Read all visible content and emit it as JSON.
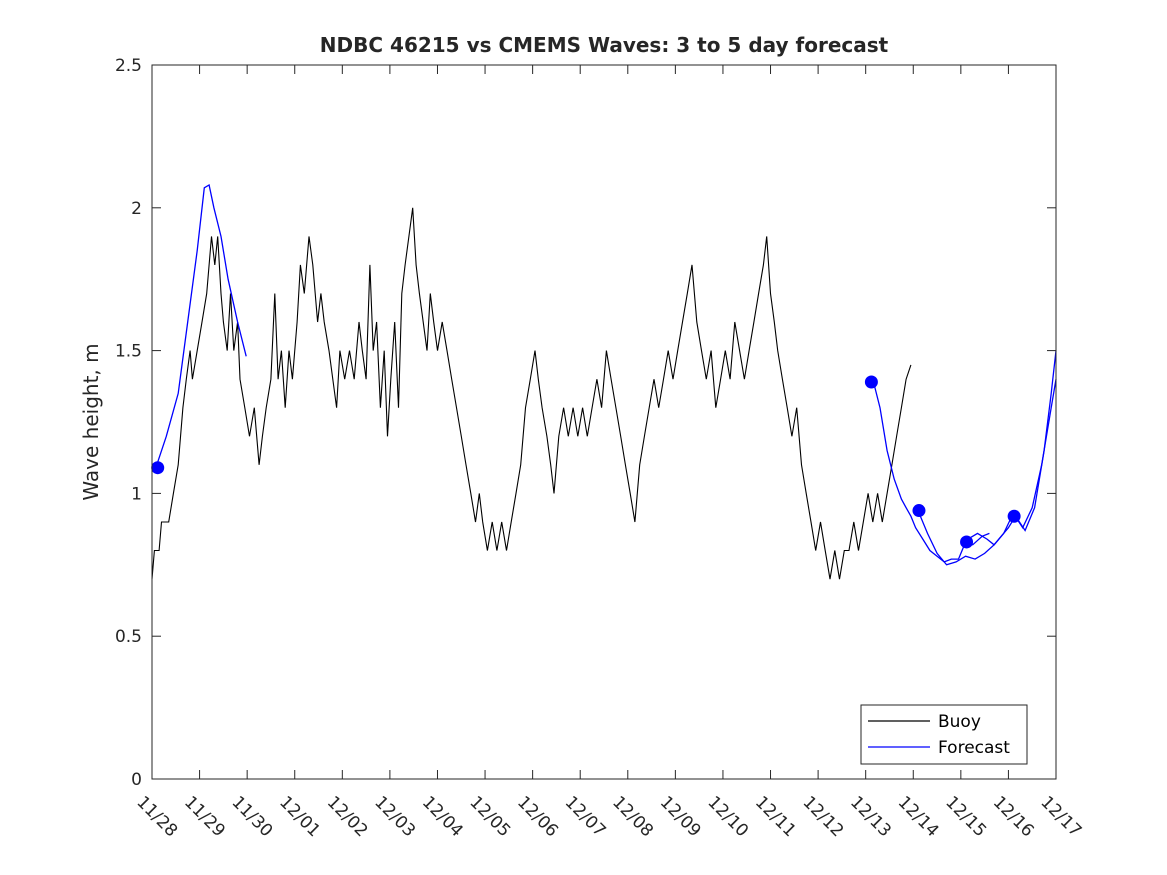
{
  "chart_data": {
    "type": "line",
    "title": "NDBC 46215 vs CMEMS Waves: 3 to 5 day forecast",
    "xlabel": "",
    "ylabel": "Wave height, m",
    "x_ticks": [
      "11/28",
      "11/29",
      "11/30",
      "12/01",
      "12/02",
      "12/03",
      "12/04",
      "12/05",
      "12/06",
      "12/07",
      "12/08",
      "12/09",
      "12/10",
      "12/11",
      "12/12",
      "12/13",
      "12/14",
      "12/15",
      "12/16",
      "12/17"
    ],
    "x_range_days": [
      0,
      19
    ],
    "y_ticks": [
      "0",
      "0.5",
      "1",
      "1.5",
      "2",
      "2.5"
    ],
    "ylim": [
      0,
      2.5
    ],
    "grid": false,
    "legend_position": "bottom-right",
    "colors": {
      "buoy": "#000000",
      "forecast": "#0000ff",
      "axis": "#262626"
    },
    "series": [
      {
        "name": "Buoy",
        "style": "line",
        "points": [
          [
            0.0,
            0.7
          ],
          [
            0.05,
            0.8
          ],
          [
            0.15,
            0.8
          ],
          [
            0.2,
            0.9
          ],
          [
            0.35,
            0.9
          ],
          [
            0.45,
            1.0
          ],
          [
            0.55,
            1.1
          ],
          [
            0.65,
            1.3
          ],
          [
            0.72,
            1.4
          ],
          [
            0.8,
            1.5
          ],
          [
            0.85,
            1.4
          ],
          [
            0.95,
            1.5
          ],
          [
            1.05,
            1.6
          ],
          [
            1.15,
            1.7
          ],
          [
            1.2,
            1.8
          ],
          [
            1.25,
            1.9
          ],
          [
            1.32,
            1.8
          ],
          [
            1.38,
            1.9
          ],
          [
            1.45,
            1.7
          ],
          [
            1.5,
            1.6
          ],
          [
            1.58,
            1.5
          ],
          [
            1.65,
            1.7
          ],
          [
            1.72,
            1.5
          ],
          [
            1.8,
            1.6
          ],
          [
            1.85,
            1.4
          ],
          [
            1.95,
            1.3
          ],
          [
            2.05,
            1.2
          ],
          [
            2.15,
            1.3
          ],
          [
            2.25,
            1.1
          ],
          [
            2.32,
            1.2
          ],
          [
            2.4,
            1.3
          ],
          [
            2.5,
            1.4
          ],
          [
            2.58,
            1.7
          ],
          [
            2.65,
            1.4
          ],
          [
            2.72,
            1.5
          ],
          [
            2.8,
            1.3
          ],
          [
            2.88,
            1.5
          ],
          [
            2.95,
            1.4
          ],
          [
            3.05,
            1.6
          ],
          [
            3.12,
            1.8
          ],
          [
            3.2,
            1.7
          ],
          [
            3.3,
            1.9
          ],
          [
            3.38,
            1.8
          ],
          [
            3.48,
            1.6
          ],
          [
            3.55,
            1.7
          ],
          [
            3.62,
            1.6
          ],
          [
            3.72,
            1.5
          ],
          [
            3.8,
            1.4
          ],
          [
            3.88,
            1.3
          ],
          [
            3.95,
            1.5
          ],
          [
            4.05,
            1.4
          ],
          [
            4.15,
            1.5
          ],
          [
            4.25,
            1.4
          ],
          [
            4.35,
            1.6
          ],
          [
            4.42,
            1.5
          ],
          [
            4.5,
            1.4
          ],
          [
            4.58,
            1.8
          ],
          [
            4.65,
            1.5
          ],
          [
            4.72,
            1.6
          ],
          [
            4.8,
            1.3
          ],
          [
            4.88,
            1.5
          ],
          [
            4.95,
            1.2
          ],
          [
            5.02,
            1.4
          ],
          [
            5.1,
            1.6
          ],
          [
            5.18,
            1.3
          ],
          [
            5.25,
            1.7
          ],
          [
            5.32,
            1.8
          ],
          [
            5.4,
            1.9
          ],
          [
            5.48,
            2.0
          ],
          [
            5.55,
            1.8
          ],
          [
            5.62,
            1.7
          ],
          [
            5.7,
            1.6
          ],
          [
            5.78,
            1.5
          ],
          [
            5.85,
            1.7
          ],
          [
            5.92,
            1.6
          ],
          [
            6.0,
            1.5
          ],
          [
            6.1,
            1.6
          ],
          [
            6.2,
            1.5
          ],
          [
            6.3,
            1.4
          ],
          [
            6.4,
            1.3
          ],
          [
            6.5,
            1.2
          ],
          [
            6.6,
            1.1
          ],
          [
            6.7,
            1.0
          ],
          [
            6.8,
            0.9
          ],
          [
            6.88,
            1.0
          ],
          [
            6.95,
            0.9
          ],
          [
            7.05,
            0.8
          ],
          [
            7.15,
            0.9
          ],
          [
            7.25,
            0.8
          ],
          [
            7.35,
            0.9
          ],
          [
            7.45,
            0.8
          ],
          [
            7.55,
            0.9
          ],
          [
            7.65,
            1.0
          ],
          [
            7.75,
            1.1
          ],
          [
            7.85,
            1.3
          ],
          [
            7.95,
            1.4
          ],
          [
            8.05,
            1.5
          ],
          [
            8.12,
            1.4
          ],
          [
            8.2,
            1.3
          ],
          [
            8.3,
            1.2
          ],
          [
            8.38,
            1.1
          ],
          [
            8.45,
            1.0
          ],
          [
            8.55,
            1.2
          ],
          [
            8.65,
            1.3
          ],
          [
            8.75,
            1.2
          ],
          [
            8.85,
            1.3
          ],
          [
            8.95,
            1.2
          ],
          [
            9.05,
            1.3
          ],
          [
            9.15,
            1.2
          ],
          [
            9.25,
            1.3
          ],
          [
            9.35,
            1.4
          ],
          [
            9.45,
            1.3
          ],
          [
            9.55,
            1.5
          ],
          [
            9.65,
            1.4
          ],
          [
            9.75,
            1.3
          ],
          [
            9.85,
            1.2
          ],
          [
            9.95,
            1.1
          ],
          [
            10.05,
            1.0
          ],
          [
            10.15,
            0.9
          ],
          [
            10.25,
            1.1
          ],
          [
            10.35,
            1.2
          ],
          [
            10.45,
            1.3
          ],
          [
            10.55,
            1.4
          ],
          [
            10.65,
            1.3
          ],
          [
            10.75,
            1.4
          ],
          [
            10.85,
            1.5
          ],
          [
            10.95,
            1.4
          ],
          [
            11.05,
            1.5
          ],
          [
            11.15,
            1.6
          ],
          [
            11.25,
            1.7
          ],
          [
            11.35,
            1.8
          ],
          [
            11.45,
            1.6
          ],
          [
            11.55,
            1.5
          ],
          [
            11.65,
            1.4
          ],
          [
            11.75,
            1.5
          ],
          [
            11.85,
            1.3
          ],
          [
            11.95,
            1.4
          ],
          [
            12.05,
            1.5
          ],
          [
            12.15,
            1.4
          ],
          [
            12.25,
            1.6
          ],
          [
            12.35,
            1.5
          ],
          [
            12.45,
            1.4
          ],
          [
            12.55,
            1.5
          ],
          [
            12.65,
            1.6
          ],
          [
            12.75,
            1.7
          ],
          [
            12.85,
            1.8
          ],
          [
            12.92,
            1.9
          ],
          [
            13.0,
            1.7
          ],
          [
            13.08,
            1.6
          ],
          [
            13.15,
            1.5
          ],
          [
            13.25,
            1.4
          ],
          [
            13.35,
            1.3
          ],
          [
            13.45,
            1.2
          ],
          [
            13.55,
            1.3
          ],
          [
            13.65,
            1.1
          ],
          [
            13.75,
            1.0
          ],
          [
            13.85,
            0.9
          ],
          [
            13.95,
            0.8
          ],
          [
            14.05,
            0.9
          ],
          [
            14.15,
            0.8
          ],
          [
            14.25,
            0.7
          ],
          [
            14.35,
            0.8
          ],
          [
            14.45,
            0.7
          ],
          [
            14.55,
            0.8
          ],
          [
            14.65,
            0.8
          ],
          [
            14.75,
            0.9
          ],
          [
            14.85,
            0.8
          ],
          [
            14.95,
            0.9
          ],
          [
            15.05,
            1.0
          ],
          [
            15.15,
            0.9
          ],
          [
            15.25,
            1.0
          ],
          [
            15.35,
            0.9
          ],
          [
            15.45,
            1.0
          ],
          [
            15.55,
            1.1
          ],
          [
            15.65,
            1.2
          ],
          [
            15.75,
            1.3
          ],
          [
            15.85,
            1.4
          ],
          [
            15.95,
            1.45
          ]
        ]
      },
      {
        "name": "Forecast",
        "style": "line",
        "segments": [
          [
            [
              0.1,
              1.1
            ],
            [
              0.3,
              1.2
            ],
            [
              0.55,
              1.35
            ],
            [
              0.75,
              1.6
            ],
            [
              0.95,
              1.85
            ],
            [
              1.1,
              2.07
            ],
            [
              1.2,
              2.08
            ],
            [
              1.3,
              2.0
            ],
            [
              1.45,
              1.9
            ],
            [
              1.6,
              1.75
            ],
            [
              1.8,
              1.6
            ],
            [
              1.98,
              1.48
            ]
          ],
          [
            [
              15.15,
              1.4
            ],
            [
              15.3,
              1.3
            ],
            [
              15.45,
              1.15
            ],
            [
              15.6,
              1.05
            ],
            [
              15.75,
              0.98
            ],
            [
              15.85,
              0.95
            ],
            [
              15.95,
              0.92
            ],
            [
              16.05,
              0.88
            ],
            [
              16.2,
              0.84
            ],
            [
              16.35,
              0.8
            ],
            [
              16.5,
              0.78
            ],
            [
              16.65,
              0.76
            ],
            [
              16.8,
              0.77
            ],
            [
              16.95,
              0.77
            ],
            [
              17.1,
              0.83
            ],
            [
              17.25,
              0.82
            ],
            [
              17.45,
              0.85
            ],
            [
              17.6,
              0.86
            ]
          ],
          [
            [
              16.1,
              0.94
            ],
            [
              16.3,
              0.86
            ],
            [
              16.5,
              0.79
            ],
            [
              16.7,
              0.75
            ],
            [
              16.9,
              0.76
            ],
            [
              17.1,
              0.78
            ],
            [
              17.3,
              0.77
            ],
            [
              17.5,
              0.79
            ],
            [
              17.7,
              0.82
            ],
            [
              17.9,
              0.86
            ],
            [
              18.1,
              0.93
            ],
            [
              18.3,
              0.88
            ],
            [
              18.5,
              0.95
            ],
            [
              18.7,
              1.1
            ],
            [
              18.9,
              1.3
            ],
            [
              19.0,
              1.4
            ]
          ],
          [
            [
              17.15,
              0.84
            ],
            [
              17.35,
              0.86
            ],
            [
              17.55,
              0.84
            ],
            [
              17.7,
              0.82
            ],
            [
              17.85,
              0.85
            ],
            [
              18.0,
              0.88
            ],
            [
              18.15,
              0.92
            ],
            [
              18.35,
              0.87
            ],
            [
              18.55,
              0.95
            ],
            [
              18.75,
              1.15
            ],
            [
              18.9,
              1.35
            ],
            [
              19.0,
              1.5
            ]
          ]
        ],
        "markers": [
          [
            0.12,
            1.09
          ],
          [
            15.12,
            1.39
          ],
          [
            16.12,
            0.94
          ],
          [
            17.12,
            0.83
          ],
          [
            18.12,
            0.92
          ]
        ]
      }
    ]
  }
}
